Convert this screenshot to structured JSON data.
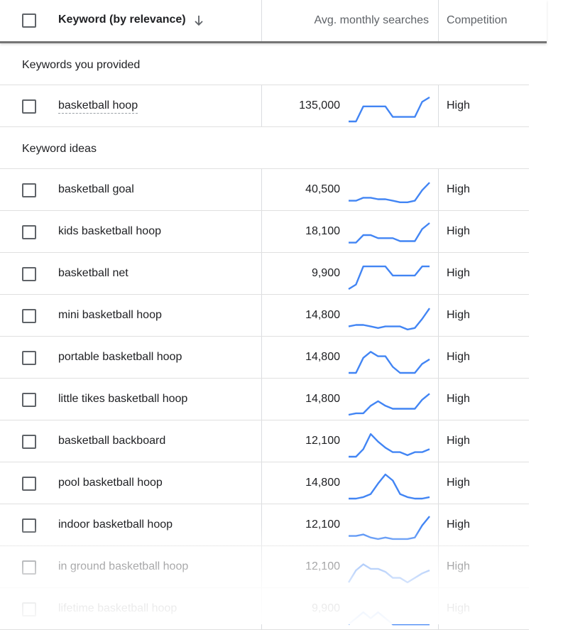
{
  "header": {
    "keyword_label": "Keyword (by relevance)",
    "sort_icon": "arrow-down-icon",
    "searches_label": "Avg. monthly searches",
    "competition_label": "Competition"
  },
  "sections": {
    "provided_label": "Keywords you provided",
    "ideas_label": "Keyword ideas"
  },
  "provided": [
    {
      "keyword": "basketball hoop",
      "searches": "135,000",
      "competition": "High",
      "trend": [
        0,
        0,
        1,
        1,
        1,
        1,
        0.3,
        0.3,
        0.3,
        0.3,
        1.3,
        1.6
      ]
    }
  ],
  "ideas": [
    {
      "keyword": "basketball goal",
      "searches": "40,500",
      "competition": "High",
      "trend": [
        0.3,
        0.3,
        0.5,
        0.5,
        0.4,
        0.4,
        0.3,
        0.2,
        0.2,
        0.3,
        1.0,
        1.5
      ]
    },
    {
      "keyword": "kids basketball hoop",
      "searches": "18,100",
      "competition": "High",
      "trend": [
        0.3,
        0.3,
        0.8,
        0.8,
        0.6,
        0.6,
        0.6,
        0.4,
        0.4,
        0.4,
        1.2,
        1.6
      ]
    },
    {
      "keyword": "basketball net",
      "searches": "9,900",
      "competition": "High",
      "trend": [
        0,
        0.3,
        1.5,
        1.5,
        1.5,
        1.5,
        0.9,
        0.9,
        0.9,
        0.9,
        1.5,
        1.5
      ]
    },
    {
      "keyword": "mini basketball hoop",
      "searches": "14,800",
      "competition": "High",
      "trend": [
        0.3,
        0.4,
        0.4,
        0.3,
        0.2,
        0.3,
        0.3,
        0.3,
        0.1,
        0.2,
        0.8,
        1.5
      ]
    },
    {
      "keyword": "portable basketball hoop",
      "searches": "14,800",
      "competition": "High",
      "trend": [
        0,
        0,
        1.0,
        1.4,
        1.1,
        1.1,
        0.4,
        0,
        0,
        0,
        0.6,
        0.9
      ]
    },
    {
      "keyword": "little tikes basketball hoop",
      "searches": "14,800",
      "competition": "High",
      "trend": [
        0,
        0.1,
        0.1,
        0.6,
        0.9,
        0.6,
        0.4,
        0.4,
        0.4,
        0.4,
        1.0,
        1.4
      ]
    },
    {
      "keyword": "basketball backboard",
      "searches": "12,100",
      "competition": "High",
      "trend": [
        0,
        0,
        0.5,
        1.5,
        1.0,
        0.6,
        0.3,
        0.3,
        0.1,
        0.3,
        0.3,
        0.5
      ]
    },
    {
      "keyword": "pool basketball hoop",
      "searches": "14,800",
      "competition": "High",
      "trend": [
        0,
        0,
        0.1,
        0.3,
        1.0,
        1.6,
        1.2,
        0.3,
        0.1,
        0,
        0,
        0.1
      ]
    },
    {
      "keyword": "indoor basketball hoop",
      "searches": "12,100",
      "competition": "High",
      "trend": [
        0.3,
        0.3,
        0.4,
        0.2,
        0.1,
        0.2,
        0.1,
        0.1,
        0.1,
        0.2,
        1.0,
        1.6
      ]
    },
    {
      "keyword": "in ground basketball hoop",
      "searches": "12,100",
      "competition": "High",
      "trend": [
        0,
        0.8,
        1.2,
        0.9,
        0.9,
        0.7,
        0.3,
        0.3,
        0,
        0.3,
        0.6,
        0.8
      ]
    },
    {
      "keyword": "lifetime basketball hoop",
      "searches": "9,900",
      "competition": "High",
      "trend": [
        0,
        0.4,
        0.8,
        0.4,
        0.8,
        0.4,
        0,
        0,
        0,
        0,
        0,
        0
      ]
    }
  ],
  "colors": {
    "sparkline": "#4285f4",
    "checkbox_border": "#5f6368",
    "divider": "#e0e0e0"
  }
}
